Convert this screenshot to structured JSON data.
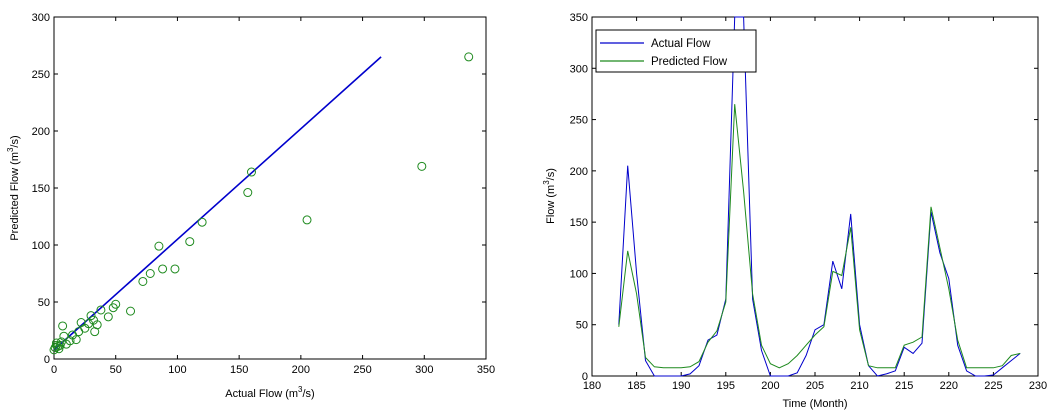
{
  "chart_data": [
    {
      "type": "scatter",
      "xlabel": {
        "base": "Actual Flow (m",
        "sup": "3",
        "tail": "/s)"
      },
      "ylabel": {
        "base": "Predicted Flow (m",
        "sup": "3",
        "tail": "/s)"
      },
      "xlim": [
        0,
        350
      ],
      "ylim": [
        0,
        300
      ],
      "xticks": [
        0,
        50,
        100,
        150,
        200,
        250,
        300,
        350
      ],
      "yticks": [
        0,
        50,
        100,
        150,
        200,
        250,
        300
      ],
      "colors": {
        "points": "#1e8a1e",
        "fit_line": "#0000cc",
        "axes": "#000000"
      },
      "marker": "open-circle",
      "fit_line": {
        "x": [
          0,
          265
        ],
        "y": [
          8,
          265
        ]
      },
      "points": [
        [
          0,
          8
        ],
        [
          1,
          10
        ],
        [
          2,
          12
        ],
        [
          3,
          11
        ],
        [
          2,
          14
        ],
        [
          4,
          9
        ],
        [
          5,
          12
        ],
        [
          6,
          15
        ],
        [
          7,
          29
        ],
        [
          8,
          20
        ],
        [
          10,
          13
        ],
        [
          13,
          16
        ],
        [
          15,
          21
        ],
        [
          18,
          17
        ],
        [
          20,
          24
        ],
        [
          22,
          32
        ],
        [
          25,
          27
        ],
        [
          28,
          31
        ],
        [
          30,
          38
        ],
        [
          32,
          34
        ],
        [
          33,
          24
        ],
        [
          35,
          30
        ],
        [
          38,
          43
        ],
        [
          44,
          37
        ],
        [
          48,
          45
        ],
        [
          50,
          48
        ],
        [
          62,
          42
        ],
        [
          72,
          68
        ],
        [
          78,
          75
        ],
        [
          85,
          99
        ],
        [
          88,
          79
        ],
        [
          98,
          79
        ],
        [
          110,
          103
        ],
        [
          120,
          120
        ],
        [
          157,
          146
        ],
        [
          160,
          164
        ],
        [
          205,
          122
        ],
        [
          298,
          169
        ],
        [
          336,
          265
        ]
      ]
    },
    {
      "type": "line",
      "xlabel": "Time (Month)",
      "ylabel": {
        "base": "Flow (m",
        "sup": "3",
        "tail": "/s)"
      },
      "xlim": [
        180,
        230
      ],
      "ylim": [
        0,
        350
      ],
      "xticks": [
        180,
        185,
        190,
        195,
        200,
        205,
        210,
        215,
        220,
        225,
        230
      ],
      "yticks": [
        0,
        50,
        100,
        150,
        200,
        250,
        300,
        350
      ],
      "legend_position": "top-left",
      "x": [
        183,
        184,
        185,
        186,
        187,
        188,
        189,
        190,
        191,
        192,
        193,
        194,
        195,
        196,
        197,
        198,
        199,
        200,
        201,
        202,
        203,
        204,
        205,
        206,
        207,
        208,
        209,
        210,
        211,
        212,
        213,
        214,
        215,
        216,
        217,
        218,
        219,
        220,
        221,
        222,
        223,
        224,
        225,
        226,
        227,
        228
      ],
      "series": [
        {
          "name": "Actual Flow",
          "color": "#0000cc",
          "values": [
            50,
            205,
            100,
            15,
            0,
            0,
            0,
            0,
            2,
            10,
            35,
            40,
            75,
            350,
            350,
            75,
            25,
            0,
            0,
            0,
            3,
            20,
            45,
            50,
            112,
            85,
            158,
            50,
            10,
            0,
            2,
            5,
            28,
            22,
            32,
            160,
            120,
            95,
            30,
            5,
            0,
            0,
            1,
            8,
            15,
            22
          ]
        },
        {
          "name": "Predicted Flow",
          "color": "#1e8a1e",
          "values": [
            48,
            122,
            80,
            18,
            9,
            8,
            8,
            8,
            9,
            14,
            33,
            44,
            72,
            265,
            180,
            80,
            30,
            12,
            8,
            12,
            20,
            30,
            40,
            48,
            102,
            98,
            145,
            45,
            10,
            8,
            8,
            8,
            30,
            33,
            38,
            165,
            125,
            85,
            35,
            8,
            8,
            8,
            8,
            10,
            20,
            22
          ]
        }
      ]
    }
  ]
}
